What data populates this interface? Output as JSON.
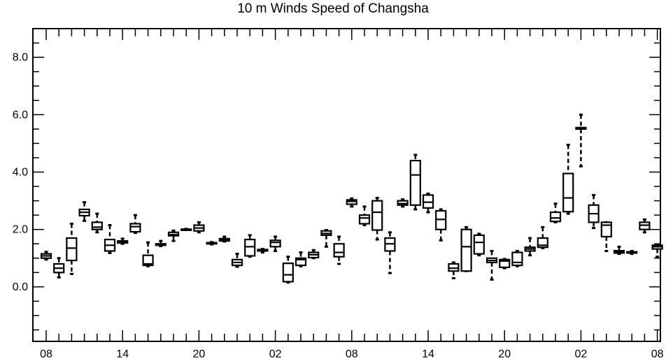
{
  "chart_data": {
    "type": "box",
    "title": "10 m Winds Speed of Changsha",
    "xlabel": "",
    "ylabel": "",
    "ylim": [
      -1.9,
      9.0
    ],
    "y_ticks": [
      0.0,
      2.0,
      4.0,
      6.0,
      8.0
    ],
    "y_tick_labels": [
      "0.0",
      "2.0",
      "4.0",
      "6.0",
      "8.0"
    ],
    "x_tick_labels": [
      "08",
      "14",
      "20",
      "02",
      "08",
      "14",
      "20",
      "02",
      "08"
    ],
    "n_slots": 48,
    "grid": false,
    "boxes": [
      {
        "slot": 0,
        "min": 0.95,
        "q1": 1.0,
        "median": 1.08,
        "q3": 1.15,
        "max": 1.22
      },
      {
        "slot": 1,
        "min": 0.33,
        "q1": 0.5,
        "median": 0.65,
        "q3": 0.8,
        "max": 1.0
      },
      {
        "slot": 2,
        "min": 0.45,
        "q1": 0.92,
        "median": 1.35,
        "q3": 1.7,
        "max": 2.2
      },
      {
        "slot": 3,
        "min": 2.3,
        "q1": 2.48,
        "median": 2.6,
        "q3": 2.7,
        "max": 2.95
      },
      {
        "slot": 4,
        "min": 1.9,
        "q1": 2.0,
        "median": 2.08,
        "q3": 2.25,
        "max": 2.55
      },
      {
        "slot": 5,
        "min": 1.18,
        "q1": 1.25,
        "median": 1.45,
        "q3": 1.65,
        "max": 2.15
      },
      {
        "slot": 6,
        "min": 1.5,
        "q1": 1.53,
        "median": 1.57,
        "q3": 1.6,
        "max": 1.68
      },
      {
        "slot": 7,
        "min": 1.88,
        "q1": 1.92,
        "median": 2.1,
        "q3": 2.2,
        "max": 2.5
      },
      {
        "slot": 8,
        "min": 0.72,
        "q1": 0.75,
        "median": 0.8,
        "q3": 1.1,
        "max": 1.55
      },
      {
        "slot": 9,
        "min": 1.42,
        "q1": 1.45,
        "median": 1.48,
        "q3": 1.5,
        "max": 1.6
      },
      {
        "slot": 10,
        "min": 1.6,
        "q1": 1.78,
        "median": 1.82,
        "q3": 1.9,
        "max": 1.96
      },
      {
        "slot": 11,
        "min": 1.98,
        "q1": 1.99,
        "median": 2.0,
        "q3": 2.01,
        "max": 2.02
      },
      {
        "slot": 12,
        "min": 1.9,
        "q1": 1.95,
        "median": 2.05,
        "q3": 2.15,
        "max": 2.25
      },
      {
        "slot": 13,
        "min": 1.48,
        "q1": 1.5,
        "median": 1.52,
        "q3": 1.54,
        "max": 1.56
      },
      {
        "slot": 14,
        "min": 1.58,
        "q1": 1.6,
        "median": 1.63,
        "q3": 1.68,
        "max": 1.75
      },
      {
        "slot": 15,
        "min": 0.7,
        "q1": 0.75,
        "median": 0.85,
        "q3": 0.95,
        "max": 1.15
      },
      {
        "slot": 16,
        "min": 1.05,
        "q1": 1.08,
        "median": 1.4,
        "q3": 1.65,
        "max": 1.8
      },
      {
        "slot": 17,
        "min": 1.2,
        "q1": 1.25,
        "median": 1.28,
        "q3": 1.3,
        "max": 1.32
      },
      {
        "slot": 18,
        "min": 1.25,
        "q1": 1.4,
        "median": 1.55,
        "q3": 1.62,
        "max": 1.75
      },
      {
        "slot": 19,
        "min": 0.15,
        "q1": 0.18,
        "median": 0.42,
        "q3": 0.82,
        "max": 1.05
      },
      {
        "slot": 20,
        "min": 0.72,
        "q1": 0.75,
        "median": 0.95,
        "q3": 1.0,
        "max": 1.2
      },
      {
        "slot": 21,
        "min": 1.0,
        "q1": 1.02,
        "median": 1.12,
        "q3": 1.2,
        "max": 1.28
      },
      {
        "slot": 22,
        "min": 1.4,
        "q1": 1.8,
        "median": 1.86,
        "q3": 1.95,
        "max": 1.98
      },
      {
        "slot": 23,
        "min": 0.8,
        "q1": 1.05,
        "median": 1.2,
        "q3": 1.5,
        "max": 1.75
      },
      {
        "slot": 24,
        "min": 2.8,
        "q1": 2.88,
        "median": 2.98,
        "q3": 3.03,
        "max": 3.08
      },
      {
        "slot": 25,
        "min": 2.15,
        "q1": 2.2,
        "median": 2.4,
        "q3": 2.5,
        "max": 2.8
      },
      {
        "slot": 26,
        "min": 1.65,
        "q1": 1.98,
        "median": 2.6,
        "q3": 3.0,
        "max": 3.1
      },
      {
        "slot": 27,
        "min": 0.48,
        "q1": 1.25,
        "median": 1.5,
        "q3": 1.7,
        "max": 1.9
      },
      {
        "slot": 28,
        "min": 2.8,
        "q1": 2.85,
        "median": 2.9,
        "q3": 3.0,
        "max": 3.05
      },
      {
        "slot": 29,
        "min": 2.7,
        "q1": 2.85,
        "median": 3.9,
        "q3": 4.4,
        "max": 4.6
      },
      {
        "slot": 30,
        "min": 2.6,
        "q1": 2.75,
        "median": 2.95,
        "q3": 3.2,
        "max": 3.25
      },
      {
        "slot": 31,
        "min": 1.62,
        "q1": 2.0,
        "median": 2.35,
        "q3": 2.65,
        "max": 2.7
      },
      {
        "slot": 32,
        "min": 0.3,
        "q1": 0.55,
        "median": 0.65,
        "q3": 0.8,
        "max": 0.85
      },
      {
        "slot": 33,
        "min": 0.55,
        "q1": 0.55,
        "median": 1.4,
        "q3": 2.0,
        "max": 2.08
      },
      {
        "slot": 34,
        "min": 1.1,
        "q1": 1.15,
        "median": 1.55,
        "q3": 1.8,
        "max": 1.85
      },
      {
        "slot": 35,
        "min": 0.25,
        "q1": 0.85,
        "median": 0.92,
        "q3": 1.0,
        "max": 1.25
      },
      {
        "slot": 36,
        "min": 0.65,
        "q1": 0.68,
        "median": 0.9,
        "q3": 0.95,
        "max": 0.97
      },
      {
        "slot": 37,
        "min": 0.72,
        "q1": 0.75,
        "median": 0.85,
        "q3": 1.2,
        "max": 1.25
      },
      {
        "slot": 38,
        "min": 1.1,
        "q1": 1.25,
        "median": 1.32,
        "q3": 1.38,
        "max": 1.7
      },
      {
        "slot": 39,
        "min": 1.35,
        "q1": 1.38,
        "median": 1.45,
        "q3": 1.7,
        "max": 2.08
      },
      {
        "slot": 40,
        "min": 2.25,
        "q1": 2.28,
        "median": 2.4,
        "q3": 2.6,
        "max": 2.9
      },
      {
        "slot": 41,
        "min": 2.55,
        "q1": 2.62,
        "median": 3.1,
        "q3": 3.95,
        "max": 4.95
      },
      {
        "slot": 42,
        "min": 4.2,
        "q1": 5.5,
        "median": 5.52,
        "q3": 5.55,
        "max": 6.0
      },
      {
        "slot": 43,
        "min": 2.05,
        "q1": 2.25,
        "median": 2.55,
        "q3": 2.85,
        "max": 3.2
      },
      {
        "slot": 44,
        "min": 1.25,
        "q1": 1.75,
        "median": 2.15,
        "q3": 2.25,
        "max": 2.25
      },
      {
        "slot": 45,
        "min": 1.15,
        "q1": 1.18,
        "median": 1.22,
        "q3": 1.26,
        "max": 1.4
      },
      {
        "slot": 46,
        "min": 1.15,
        "q1": 1.18,
        "median": 1.2,
        "q3": 1.22,
        "max": 1.25
      },
      {
        "slot": 47,
        "min": 1.9,
        "q1": 2.0,
        "median": 2.15,
        "q3": 2.25,
        "max": 2.35
      },
      {
        "slot": 48,
        "min": 1.05,
        "q1": 1.32,
        "median": 1.4,
        "q3": 1.45,
        "max": 1.48
      }
    ]
  }
}
